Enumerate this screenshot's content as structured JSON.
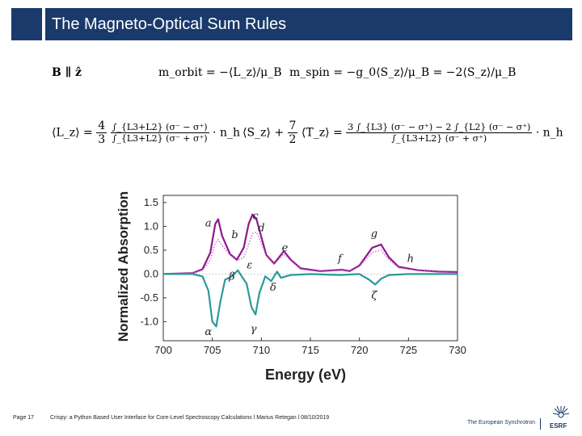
{
  "header": {
    "title": "The Magneto-Optical Sum Rules"
  },
  "equations": {
    "field": "B ∥ ẑ",
    "m_orbit": "m_orbit = −⟨L_z⟩/μ_B",
    "m_spin": "m_spin = −g_0⟨S_z⟩/μ_B = −2⟨S_z⟩/μ_B",
    "lz_lhs": "⟨L_z⟩ = ",
    "lz_coef_num": "4",
    "lz_coef_den": "3",
    "lz_num": "∫_{L3+L2} (σ⁻ − σ⁺)",
    "lz_den": "∫_{L3+L2} (σ⁻ + σ⁺)",
    "lz_tail": "· n_h",
    "sz_lhs": "⟨S_z⟩ + ",
    "sz_coef_num": "7",
    "sz_coef_den": "2",
    "sz_mid": "⟨T_z⟩ = ",
    "sz_num": "3 ∫_{L3} (σ⁻ − σ⁺) − 2 ∫_{L2} (σ⁻ − σ⁺)",
    "sz_den": "∫_{L3+L2} (σ⁻ + σ⁺)",
    "sz_tail": "· n_h"
  },
  "chart_data": {
    "type": "line",
    "xlabel": "Energy (eV)",
    "ylabel": "Normalized Absorption",
    "xlim": [
      700,
      730
    ],
    "ylim": [
      -1.4,
      1.65
    ],
    "xticks": [
      700,
      705,
      710,
      715,
      720,
      725,
      730
    ],
    "yticks": [
      1.5,
      1.0,
      0.5,
      0.0,
      -0.5,
      -1.0
    ],
    "series": [
      {
        "color": "#8b1a8b",
        "style": "solid",
        "x": [
          700,
          703,
          704,
          704.8,
          705.3,
          705.6,
          706,
          706.8,
          707.5,
          708.2,
          708.7,
          709.1,
          709.5,
          709.9,
          710.5,
          711.3,
          712.3,
          713,
          714,
          716,
          718.2,
          719,
          720,
          721.3,
          722.2,
          723,
          724,
          726,
          728,
          730
        ],
        "y": [
          0,
          0.02,
          0.1,
          0.45,
          1.05,
          1.15,
          0.8,
          0.42,
          0.3,
          0.55,
          1.05,
          1.25,
          1.15,
          0.85,
          0.4,
          0.22,
          0.48,
          0.3,
          0.12,
          0.06,
          0.09,
          0.06,
          0.18,
          0.55,
          0.62,
          0.35,
          0.15,
          0.08,
          0.05,
          0.04
        ]
      },
      {
        "color": "#cc66cc",
        "style": "dotted",
        "x": [
          700,
          703,
          704,
          704.8,
          705.3,
          705.6,
          706,
          706.8,
          707.5,
          708.2,
          708.7,
          709.1,
          709.5,
          709.9,
          710.5,
          711.3,
          712.3,
          713,
          714,
          716,
          718.2,
          719,
          720,
          721.3,
          722.2,
          723,
          724,
          726,
          728,
          730
        ],
        "y": [
          0,
          0.02,
          0.08,
          0.3,
          0.65,
          0.72,
          0.6,
          0.4,
          0.28,
          0.35,
          0.62,
          0.85,
          0.88,
          0.7,
          0.38,
          0.2,
          0.42,
          0.28,
          0.1,
          0.05,
          0.08,
          0.05,
          0.16,
          0.45,
          0.5,
          0.3,
          0.13,
          0.07,
          0.04,
          0.03
        ]
      },
      {
        "color": "#2a9a9a",
        "style": "solid",
        "x": [
          700,
          703,
          704,
          704.6,
          705,
          705.4,
          705.8,
          706.3,
          707,
          707.6,
          708,
          708.5,
          709,
          709.4,
          709.8,
          710.4,
          711,
          711.6,
          712,
          713,
          715,
          718,
          720,
          721,
          721.6,
          722.2,
          723,
          725,
          730
        ],
        "y": [
          0,
          0,
          -0.05,
          -0.35,
          -1.0,
          -1.1,
          -0.6,
          -0.12,
          -0.05,
          0.08,
          -0.05,
          -0.2,
          -0.7,
          -0.85,
          -0.4,
          -0.05,
          -0.15,
          0.05,
          -0.08,
          -0.02,
          0,
          -0.02,
          0,
          -0.12,
          -0.22,
          -0.1,
          -0.02,
          0,
          0
        ]
      }
    ],
    "annotations": [
      {
        "text": "a",
        "x": 704.6,
        "y": 1.0
      },
      {
        "text": "b",
        "x": 707.3,
        "y": 0.75
      },
      {
        "text": "c",
        "x": 709.4,
        "y": 1.15
      },
      {
        "text": "d",
        "x": 710.0,
        "y": 0.9
      },
      {
        "text": "e",
        "x": 712.4,
        "y": 0.48
      },
      {
        "text": "f",
        "x": 718.0,
        "y": 0.25
      },
      {
        "text": "g",
        "x": 721.5,
        "y": 0.78
      },
      {
        "text": "h",
        "x": 725.2,
        "y": 0.25
      },
      {
        "text": "ε",
        "x": 708.8,
        "y": 0.12
      },
      {
        "text": "β",
        "x": 707.0,
        "y": -0.12
      },
      {
        "text": "δ",
        "x": 711.2,
        "y": -0.35
      },
      {
        "text": "ζ",
        "x": 721.5,
        "y": -0.52
      },
      {
        "text": "α",
        "x": 704.6,
        "y": -1.28
      },
      {
        "text": "γ",
        "x": 709.2,
        "y": -1.22
      }
    ]
  },
  "footer": {
    "page": "Page 17",
    "caption": "Crispy: a Python Based User Interface for Core-Level Spectroscopy Calculations l Marius Retegan l 08/10/2019",
    "org": "The European Synchrotron",
    "logo_text": "ESRF"
  }
}
